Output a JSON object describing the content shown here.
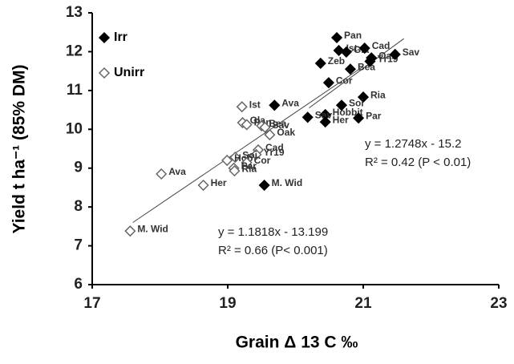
{
  "chart_data": {
    "type": "scatter",
    "x_label": "Grain Δ 13 C ‰",
    "y_label": "Yield t ha⁻¹ (85% DM)",
    "xlim": [
      17,
      23
    ],
    "xticks": [
      17,
      19,
      21,
      23
    ],
    "ylim": [
      6,
      13
    ],
    "yticks": [
      6,
      7,
      8,
      9,
      10,
      11,
      12,
      13
    ],
    "legend": "top-left",
    "series": [
      {
        "name": "Irr",
        "color": "#000000",
        "filled": true,
        "x": [
          20.61,
          20.64,
          20.75,
          21.02,
          21.12,
          21.1,
          21.47,
          20.37,
          20.81,
          20.49,
          21.0,
          20.68,
          19.69,
          20.44,
          20.18,
          20.44,
          20.93,
          19.54
        ],
        "y": [
          12.36,
          12.03,
          11.99,
          12.09,
          11.84,
          11.75,
          11.93,
          11.7,
          11.55,
          11.2,
          10.83,
          10.62,
          10.62,
          10.38,
          10.31,
          10.19,
          10.29,
          8.56
        ],
        "labels": [
          "Pan",
          "Ist",
          "Gla",
          "Cad",
          "Oak",
          "Yr19",
          "Sav",
          "Zeb",
          "Bea",
          "Cor",
          "Ria",
          "Soi",
          "Ava",
          "Hobbit",
          "Sav",
          "Her",
          "Par",
          "M. Wid"
        ],
        "fit": {
          "slope": 1.2748,
          "intercept": -15.2,
          "x_range": [
            20.2,
            21.6
          ]
        },
        "equation": "y = 1.2748x - 15.2",
        "r2": "R² = 0.42 (P < 0.01)"
      },
      {
        "name": "Unirr",
        "color": "#666666",
        "filled": false,
        "x": [
          19.21,
          19.22,
          19.28,
          19.5,
          19.55,
          19.62,
          19.45,
          19.42,
          19.11,
          18.99,
          19.28,
          19.09,
          19.1,
          18.02,
          18.64,
          17.56
        ],
        "y": [
          10.58,
          10.17,
          10.12,
          10.09,
          10.05,
          9.86,
          9.47,
          9.35,
          9.28,
          9.2,
          9.14,
          9.0,
          8.93,
          8.85,
          8.56,
          7.38
        ],
        "labels": [
          "Ist",
          "Gla",
          "Pan",
          "Bea",
          "Sav",
          "Oak",
          "Cad",
          "Yr19",
          "Soi",
          "Hob",
          "Cor",
          "Par",
          "Ria",
          "Ava",
          "Her",
          "M. Wid"
        ],
        "fit": {
          "slope": 1.1818,
          "intercept": -13.199,
          "x_range": [
            17.6,
            21.0
          ]
        },
        "equation": "y = 1.1818x - 13.199",
        "r2": "R² = 0.66 (P< 0.001)"
      }
    ]
  }
}
